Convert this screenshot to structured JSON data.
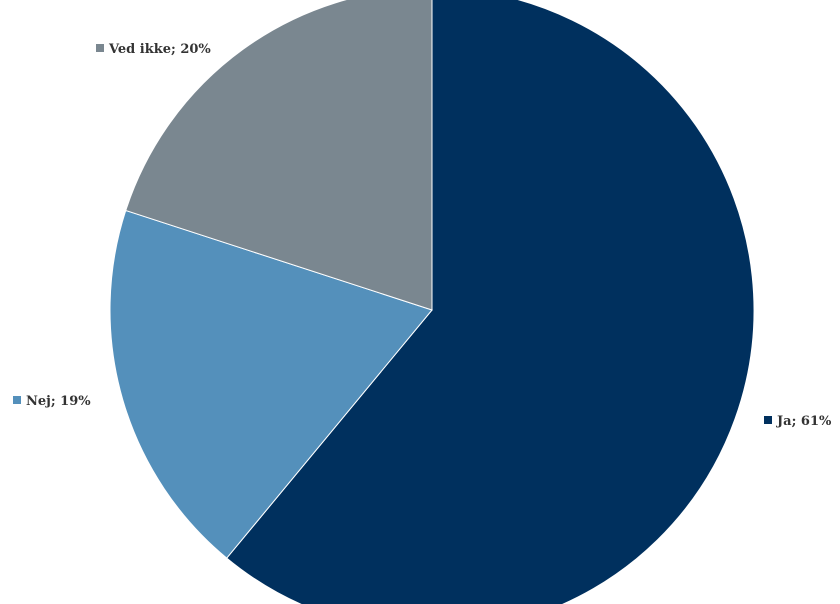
{
  "chart_data": {
    "type": "pie",
    "slices": [
      {
        "label": "Ja",
        "value": 61,
        "display": "Ja; 61%",
        "color": "#00305e"
      },
      {
        "label": "Nej",
        "value": 19,
        "display": "Nej; 19%",
        "color": "#5490bb"
      },
      {
        "label": "Ved ikke",
        "value": 20,
        "display": "Ved ikke; 20%",
        "color": "#7a8790"
      }
    ],
    "start_angle_deg": 0,
    "direction": "clockwise",
    "legend": "none",
    "labels": "outside"
  }
}
